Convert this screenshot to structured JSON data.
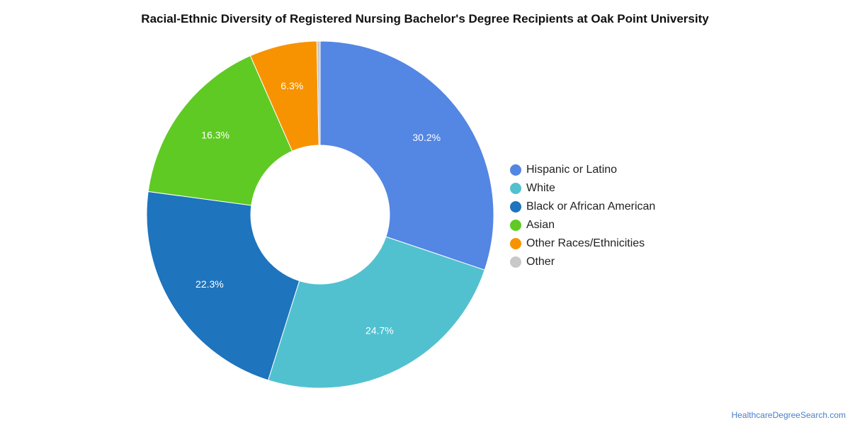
{
  "chart_data": {
    "type": "pie",
    "title": "Racial-Ethnic Diversity of Registered Nursing Bachelor's Degree Recipients at Oak Point University",
    "donut": true,
    "legend_position": "right",
    "slices": [
      {
        "label": "Hispanic or Latino",
        "value": 30.2,
        "display": "30.2%",
        "color": "#5486e3"
      },
      {
        "label": "White",
        "value": 24.7,
        "display": "24.7%",
        "color": "#52c1cf"
      },
      {
        "label": "Black or African American",
        "value": 22.3,
        "display": "22.3%",
        "color": "#1e74bd"
      },
      {
        "label": "Asian",
        "value": 16.3,
        "display": "16.3%",
        "color": "#60ca24"
      },
      {
        "label": "Other Races/Ethnicities",
        "value": 6.3,
        "display": "6.3%",
        "color": "#f79300"
      },
      {
        "label": "Other",
        "value": 0.3,
        "display": "",
        "color": "#c8c8c8"
      }
    ]
  },
  "footer": {
    "source": "HealthcareDegreeSearch.com"
  }
}
